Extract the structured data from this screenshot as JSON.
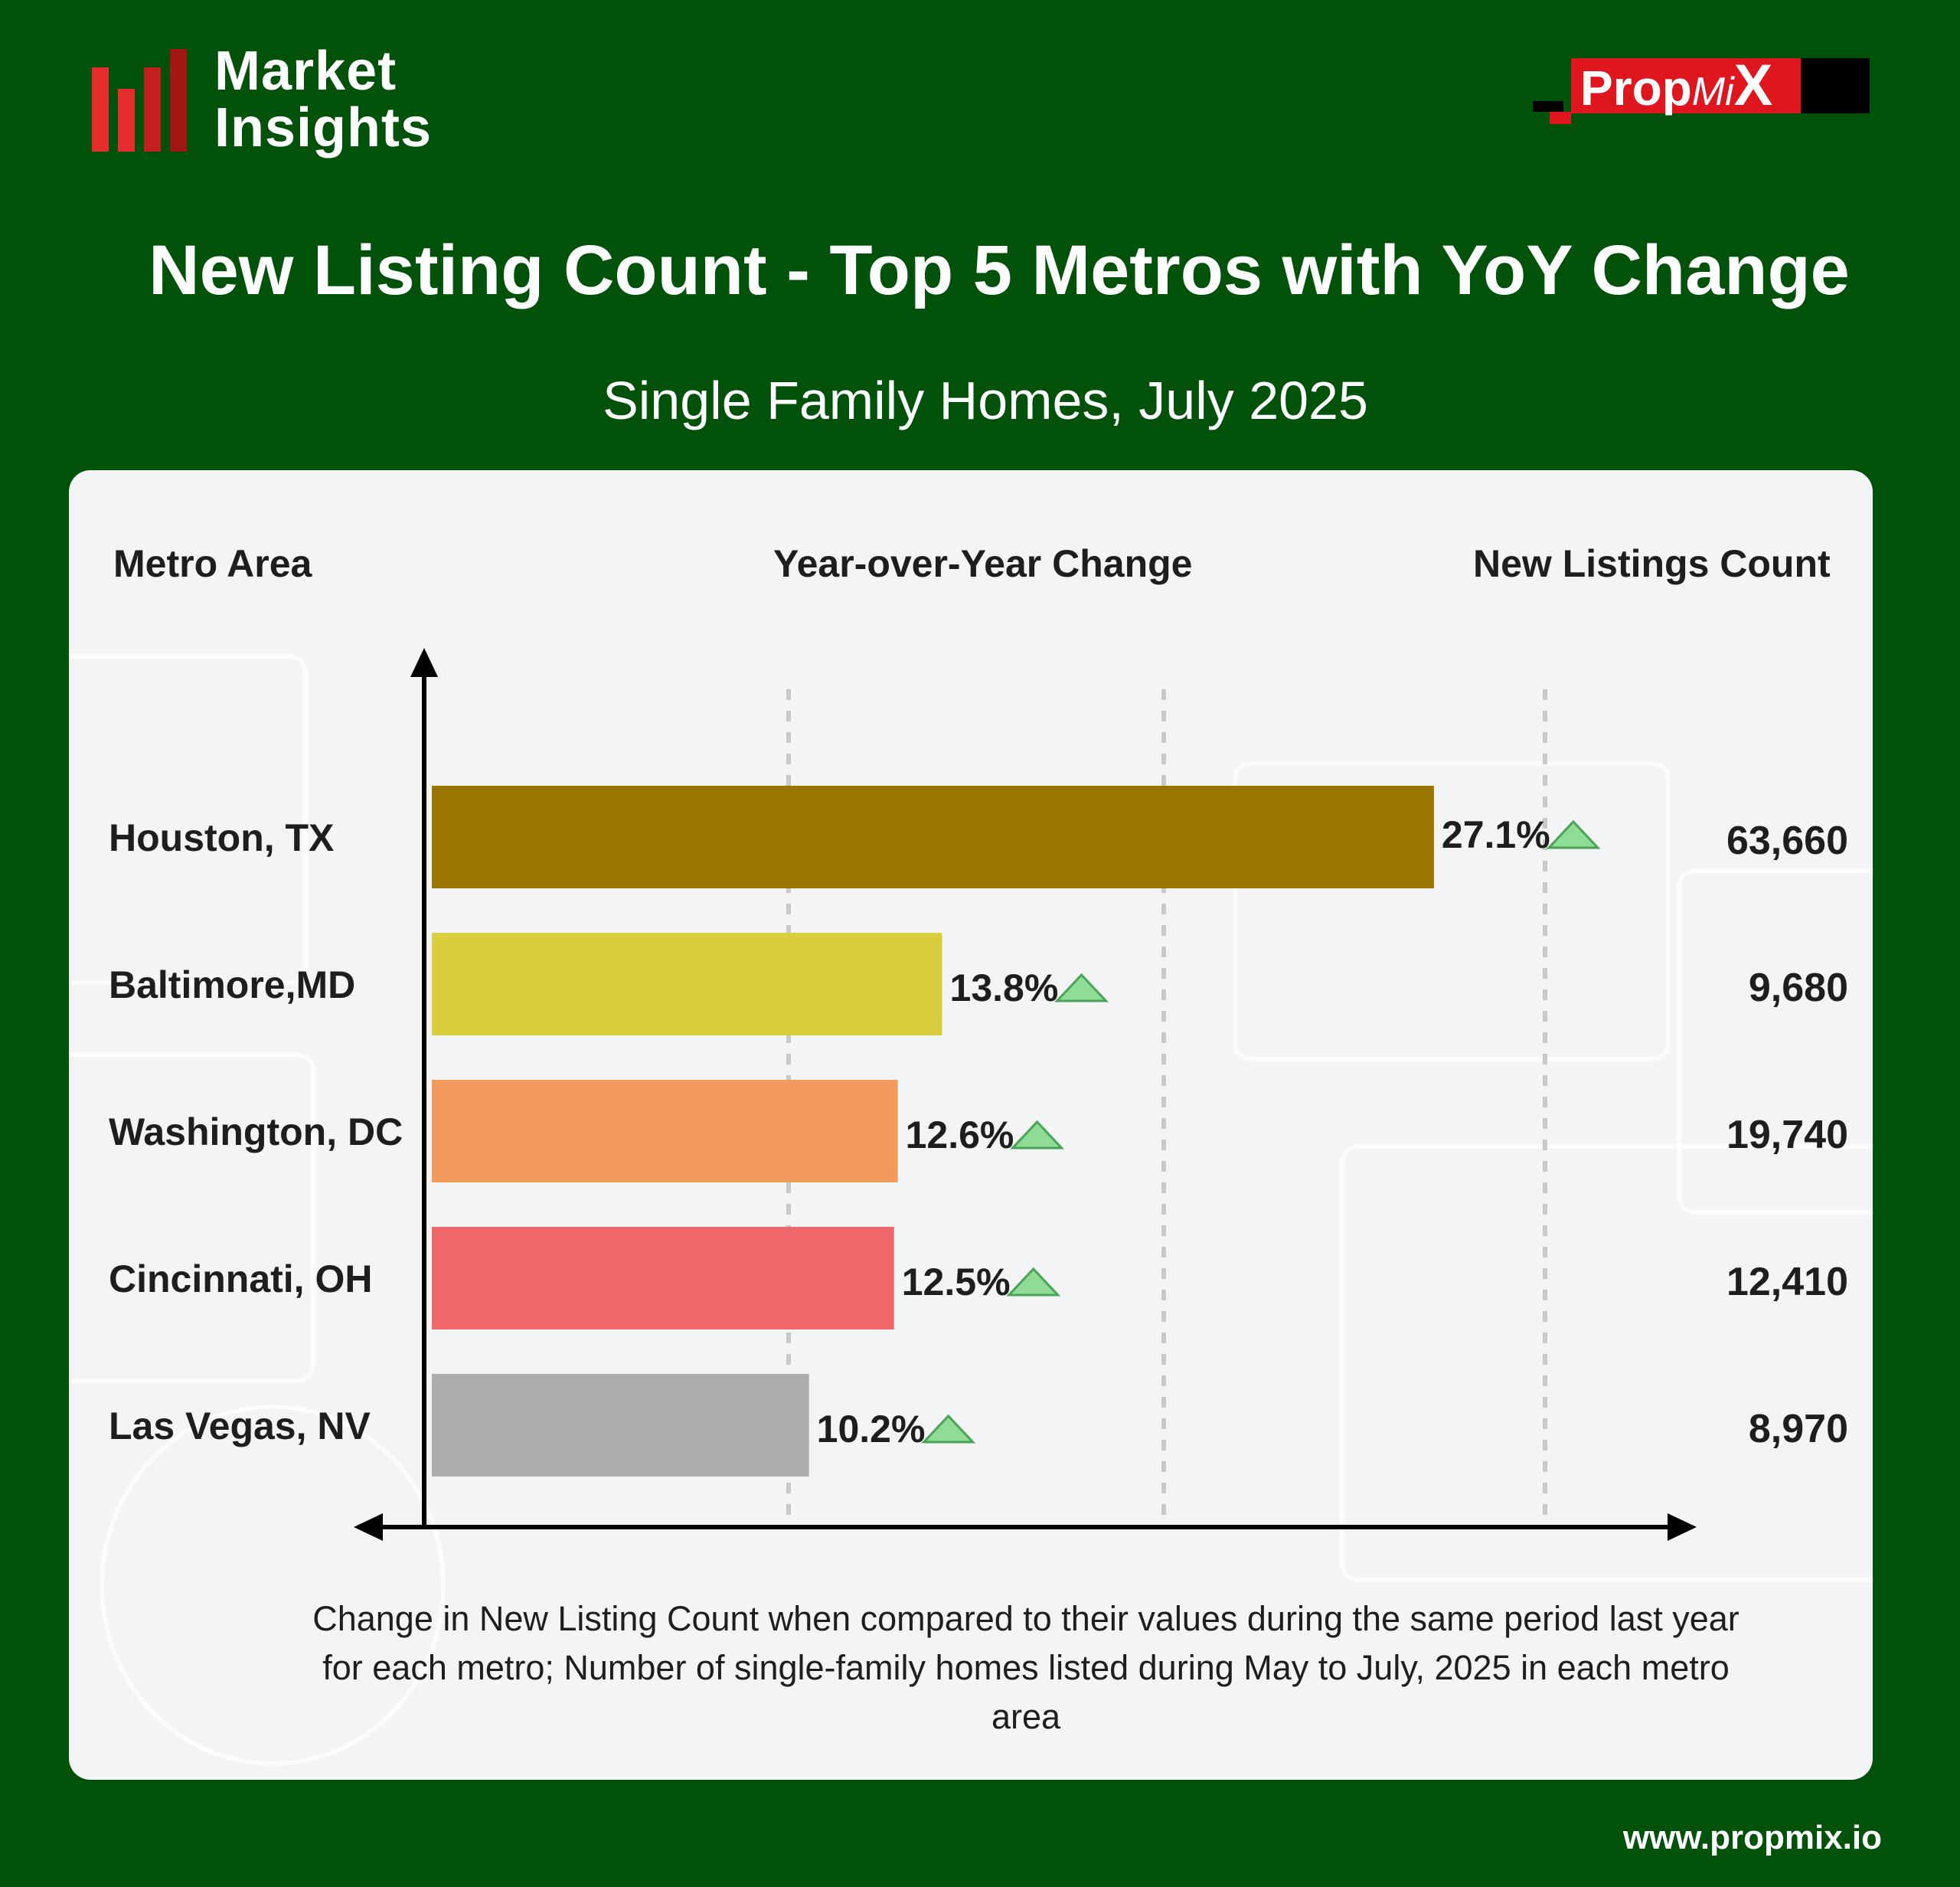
{
  "brand": {
    "line1": "Market",
    "line2": "Insights",
    "bar_colors": [
      "#e52d2d",
      "#e52d2d",
      "#c41f1f",
      "#a31616"
    ]
  },
  "propmix": {
    "part1": "Prop",
    "part2": "Mi",
    "part3": "X"
  },
  "columns": {
    "metro": "Metro Area",
    "yoy": "Year-over-Year Change",
    "count": "New Listings Count"
  },
  "caption": "Change in New Listing Count when compared to their values during the same period last year for each metro; Number of single-family homes listed during May to July, 2025 in each metro area",
  "footer": {
    "url": "www.propmix.io"
  },
  "chart_data": {
    "type": "bar",
    "orientation": "horizontal",
    "title": "New Listing Count - Top 5 Metros with YoY Change",
    "subtitle": "Single Family Homes, July 2025",
    "categories": [
      "Houston, TX",
      "Baltimore,MD",
      "Washington, DC",
      "Cincinnati, OH",
      "Las Vegas, NV"
    ],
    "values": [
      27.1,
      13.8,
      12.6,
      12.5,
      10.2
    ],
    "value_labels": [
      "27.1%",
      "13.8%",
      "12.6%",
      "12.5%",
      "10.2%"
    ],
    "listing_counts": [
      "63,660",
      "9,680",
      "19,740",
      "12,410",
      "8,970"
    ],
    "colors": [
      "#9a7500",
      "#d9cf3e",
      "#f2995c",
      "#f0676a",
      "#acacac"
    ],
    "trend": "up",
    "trend_color": "#8fdc96",
    "xlim": [
      0,
      35
    ],
    "grid": "dashed-vertical"
  }
}
